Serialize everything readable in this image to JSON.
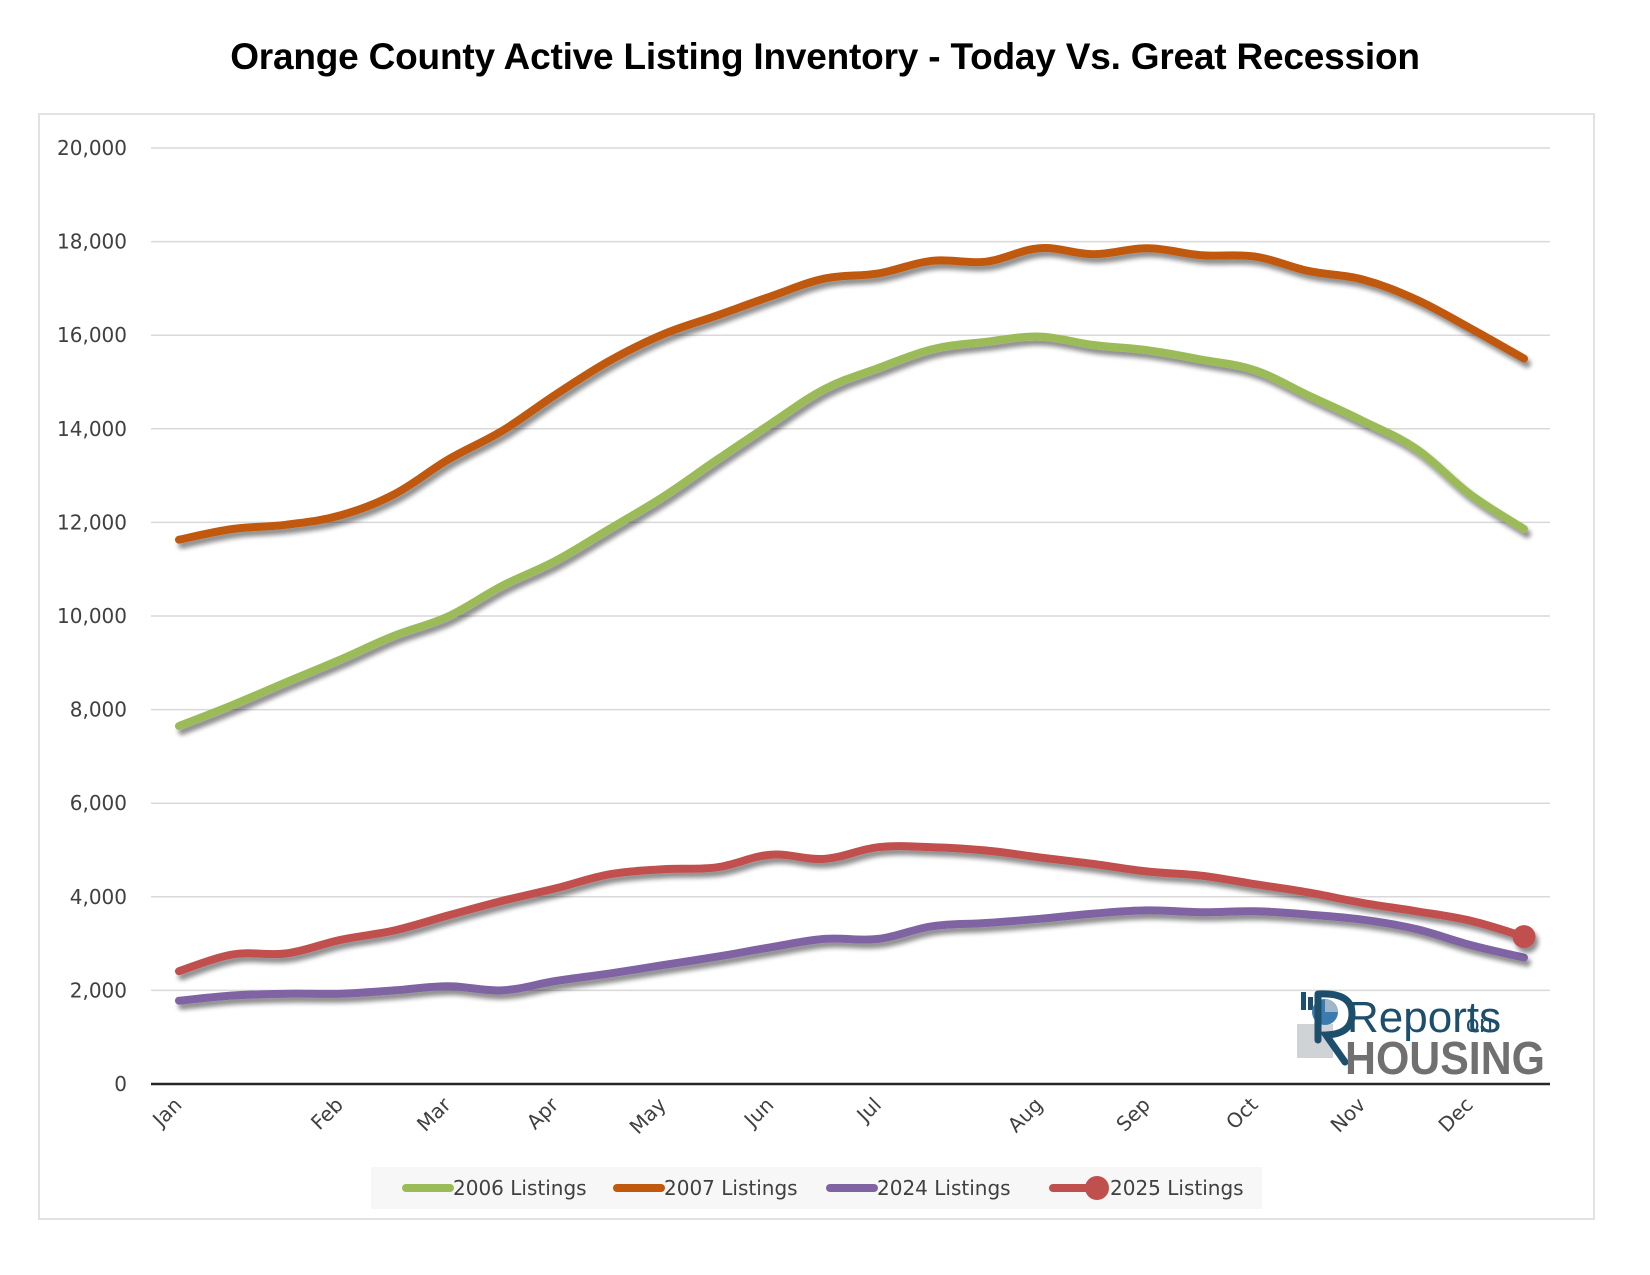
{
  "chart_data": {
    "type": "line",
    "title": "Orange County Active Listing Inventory - Today Vs. Great Recession",
    "xlabel": "",
    "ylabel": "",
    "ylim": [
      0,
      20000
    ],
    "yticks": [
      0,
      2000,
      4000,
      6000,
      8000,
      10000,
      12000,
      14000,
      16000,
      18000,
      20000
    ],
    "ytick_labels": [
      "0",
      "2,000",
      "4,000",
      "6,000",
      "8,000",
      "10,000",
      "12,000",
      "14,000",
      "16,000",
      "18,000",
      "20,000"
    ],
    "grid": "horizontal",
    "num_points": 26,
    "x_tick_labels": [
      {
        "index": 0,
        "label": "Jan"
      },
      {
        "index": 3,
        "label": "Feb"
      },
      {
        "index": 5,
        "label": "Mar"
      },
      {
        "index": 7,
        "label": "Apr"
      },
      {
        "index": 9,
        "label": "May"
      },
      {
        "index": 11,
        "label": "Jun"
      },
      {
        "index": 13,
        "label": "Jul"
      },
      {
        "index": 16,
        "label": "Aug"
      },
      {
        "index": 18,
        "label": "Sep"
      },
      {
        "index": 20,
        "label": "Oct"
      },
      {
        "index": 22,
        "label": "Nov"
      },
      {
        "index": 24,
        "label": "Dec"
      }
    ],
    "legend_position": "bottom",
    "series": [
      {
        "name": "2006 Listings",
        "color": "#9bbb59",
        "values": [
          7650,
          8100,
          8590,
          9070,
          9580,
          9990,
          10640,
          11180,
          11860,
          12550,
          13340,
          14110,
          14850,
          15300,
          15700,
          15860,
          15970,
          15790,
          15680,
          15480,
          15250,
          14710,
          14170,
          13570,
          12600,
          11860
        ]
      },
      {
        "name": "2007 Listings",
        "color": "#c0590d",
        "values": [
          11630,
          11860,
          11950,
          12150,
          12600,
          13340,
          13950,
          14730,
          15450,
          16020,
          16420,
          16830,
          17210,
          17320,
          17590,
          17570,
          17860,
          17730,
          17860,
          17710,
          17680,
          17370,
          17190,
          16760,
          16150,
          15500
        ]
      },
      {
        "name": "2024 Listings",
        "color": "#8064a2",
        "values": [
          1780,
          1890,
          1930,
          1930,
          2000,
          2090,
          2000,
          2200,
          2360,
          2540,
          2720,
          2920,
          3100,
          3100,
          3370,
          3440,
          3530,
          3640,
          3710,
          3670,
          3690,
          3620,
          3510,
          3310,
          2970,
          2700
        ]
      },
      {
        "name": "2025 Listings",
        "color": "#c0504d",
        "end_marker": true,
        "values": [
          2410,
          2770,
          2790,
          3080,
          3280,
          3600,
          3910,
          4180,
          4480,
          4590,
          4630,
          4900,
          4810,
          5060,
          5060,
          4990,
          4840,
          4700,
          4540,
          4450,
          4270,
          4090,
          3870,
          3690,
          3490,
          3150
        ]
      }
    ]
  },
  "logo": {
    "line1": "Reports",
    "line1_suffix": "on",
    "line2": "HOUSING",
    "colors": {
      "primary": "#1d4e6b",
      "secondary": "#707070",
      "accent": "#3a7bb0"
    }
  },
  "colors": {
    "gridline": "#d9d9d9",
    "axis": "#262626",
    "tick_text": "#404040",
    "legend_bg": "#f7f7f7",
    "frame_border": "#e2e2e2"
  }
}
